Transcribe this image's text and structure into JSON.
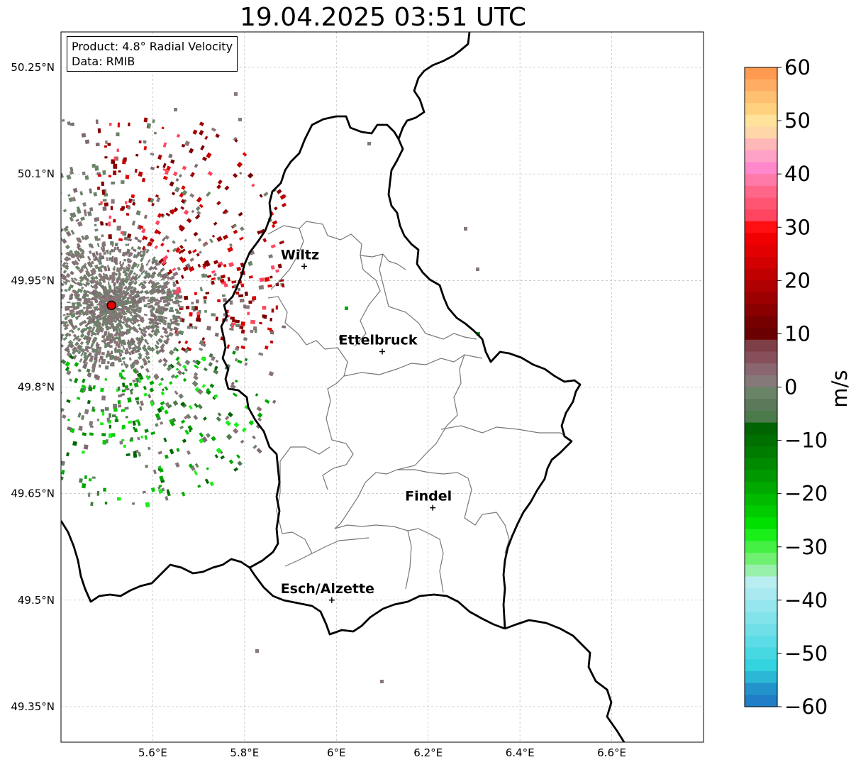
{
  "title": "19.04.2025 03:51 UTC",
  "info": {
    "product": "Product: 4.8° Radial Velocity",
    "source": "Data: RMIB"
  },
  "axes": {
    "lon_ticks": [
      "5.6°E",
      "5.8°E",
      "6°E",
      "6.2°E",
      "6.4°E",
      "6.6°E"
    ],
    "lat_ticks": [
      "50.25°N",
      "50.1°N",
      "49.95°N",
      "49.8°N",
      "49.65°N",
      "49.5°N",
      "49.35°N"
    ],
    "lon_range": [
      5.4,
      6.8
    ],
    "lat_range": [
      49.3,
      50.3
    ],
    "grid": true
  },
  "cities": [
    {
      "name": "Wiltz",
      "lon": 5.93,
      "lat": 49.97
    },
    {
      "name": "Ettelbruck",
      "lon": 6.1,
      "lat": 49.85
    },
    {
      "name": "Findel",
      "lon": 6.21,
      "lat": 49.63
    },
    {
      "name": "Esch/Alzette",
      "lon": 5.99,
      "lat": 49.5
    }
  ],
  "radar_site": {
    "lon": 5.51,
    "lat": 49.915
  },
  "colorbar": {
    "label": "m/s",
    "ticks": [
      "60",
      "50",
      "40",
      "30",
      "20",
      "10",
      "0",
      "−10",
      "−20",
      "−30",
      "−40",
      "−50",
      "−60"
    ],
    "range": [
      -60,
      60
    ],
    "colors_top_to_bottom": [
      "#ff9a50",
      "#ffad62",
      "#ffc072",
      "#ffd07e",
      "#ffe39a",
      "#ffd6a8",
      "#ffb7b7",
      "#ffa3c6",
      "#ff88cc",
      "#ff7aa8",
      "#ff6688",
      "#ff5573",
      "#ff4560",
      "#ff0f12",
      "#f00000",
      "#e20000",
      "#d20000",
      "#c00000",
      "#ae0000",
      "#9c0000",
      "#8a0000",
      "#760000",
      "#6a0000",
      "#7e3e46",
      "#864f5a",
      "#8a6670",
      "#857979",
      "#6a8468",
      "#5a7a5a",
      "#4b7a4b",
      "#006400",
      "#007000",
      "#007c00",
      "#008a00",
      "#009800",
      "#00a800",
      "#00bb00",
      "#00cc00",
      "#00e000",
      "#1aef1a",
      "#44f044",
      "#70f070",
      "#98f0aa",
      "#b9eef0",
      "#a8eaf0",
      "#96e6ee",
      "#82e3eb",
      "#70dfe8",
      "#5cdce6",
      "#47d8e2",
      "#33d3df",
      "#2ab8d6",
      "#2393cc",
      "#1f7ec6"
    ]
  }
}
